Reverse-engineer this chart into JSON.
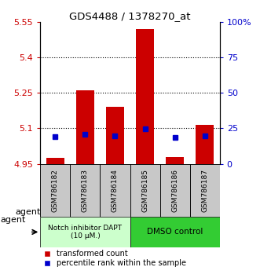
{
  "title": "GDS4488 / 1378270_at",
  "samples": [
    "GSM786182",
    "GSM786183",
    "GSM786184",
    "GSM786185",
    "GSM786186",
    "GSM786187"
  ],
  "red_values": [
    4.975,
    5.26,
    5.19,
    5.52,
    4.98,
    5.115
  ],
  "blue_values": [
    5.065,
    5.075,
    5.068,
    5.098,
    5.062,
    5.068
  ],
  "ylim_left": [
    4.95,
    5.55
  ],
  "ylim_right": [
    0,
    100
  ],
  "yticks_left": [
    4.95,
    5.1,
    5.25,
    5.4,
    5.55
  ],
  "ytick_labels_left": [
    "4.95",
    "5.1",
    "5.25",
    "5.4",
    "5.55"
  ],
  "yticks_right": [
    0,
    25,
    50,
    75,
    100
  ],
  "ytick_labels_right": [
    "0",
    "25",
    "50",
    "75",
    "100%"
  ],
  "hlines": [
    5.1,
    5.25,
    5.4
  ],
  "bar_bottom": 4.95,
  "bar_width": 0.6,
  "red_color": "#cc0000",
  "blue_color": "#0000cc",
  "group1_label": "Notch inhibitor DAPT\n(10 μM.)",
  "group1_color": "#ccffcc",
  "group2_label": "DMSO control",
  "group2_color": "#33cc33",
  "agent_label": "agent",
  "legend1": "transformed count",
  "legend2": "percentile rank within the sample",
  "tick_color_left": "#cc0000",
  "tick_color_right": "#0000cc",
  "bg_plot": "#ffffff",
  "bg_xtick": "#c8c8c8"
}
